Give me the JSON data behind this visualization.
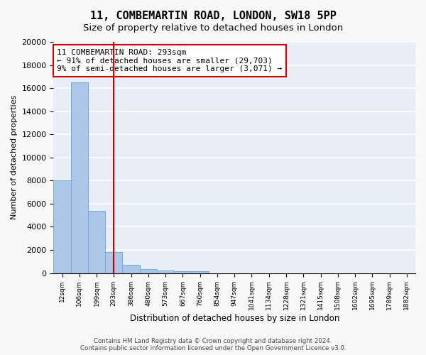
{
  "title": "11, COMBEMARTIN ROAD, LONDON, SW18 5PP",
  "subtitle": "Size of property relative to detached houses in London",
  "xlabel": "Distribution of detached houses by size in London",
  "ylabel": "Number of detached properties",
  "bin_labels": [
    "12sqm",
    "106sqm",
    "199sqm",
    "293sqm",
    "386sqm",
    "480sqm",
    "573sqm",
    "667sqm",
    "760sqm",
    "854sqm",
    "947sqm",
    "1041sqm",
    "1134sqm",
    "1228sqm",
    "1321sqm",
    "1415sqm",
    "1508sqm",
    "1602sqm",
    "1695sqm",
    "1789sqm",
    "1882sqm"
  ],
  "bar_values": [
    8050,
    16500,
    5350,
    1800,
    700,
    340,
    220,
    190,
    160,
    0,
    0,
    0,
    0,
    0,
    0,
    0,
    0,
    0,
    0,
    0,
    0
  ],
  "bar_color": "#aec6e8",
  "bar_edgecolor": "#6baed6",
  "vline_x": 3,
  "vline_color": "#cc0000",
  "annotation_line1": "11 COMBEMARTIN ROAD: 293sqm",
  "annotation_line2": "← 91% of detached houses are smaller (29,703)",
  "annotation_line3": "9% of semi-detached houses are larger (3,071) →",
  "annotation_box_color": "#ffffff",
  "annotation_box_edgecolor": "#cc0000",
  "ylim": [
    0,
    20000
  ],
  "yticks": [
    0,
    2000,
    4000,
    6000,
    8000,
    10000,
    12000,
    14000,
    16000,
    18000,
    20000
  ],
  "footer_line1": "Contains HM Land Registry data © Crown copyright and database right 2024.",
  "footer_line2": "Contains public sector information licensed under the Open Government Licence v3.0.",
  "bg_color": "#e8eef8",
  "grid_color": "#ffffff",
  "title_fontsize": 11,
  "subtitle_fontsize": 9.5,
  "annotation_fontsize": 8.0
}
